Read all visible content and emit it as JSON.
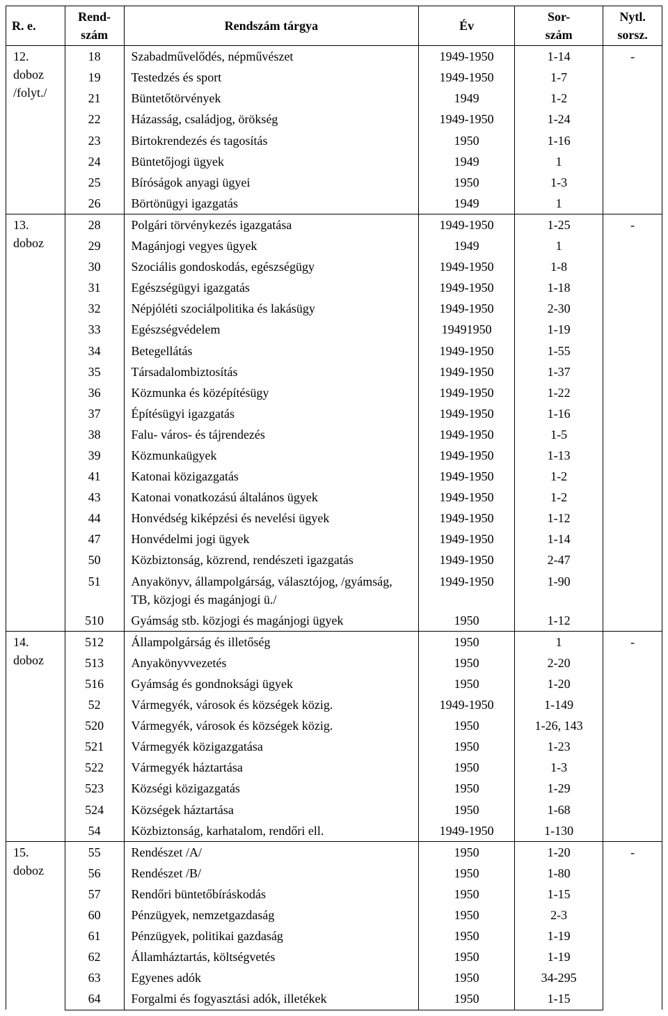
{
  "headers": {
    "re": "R. e.",
    "rend": "Rend-\nszám",
    "targy": "Rendszám tárgya",
    "ev": "Év",
    "sor": "Sor-\nszám",
    "nytl": "Nytl.\nsorsz."
  },
  "groups": [
    {
      "re_lines": [
        "12.",
        "doboz",
        "/folyt./"
      ],
      "nytl": "-",
      "rows": [
        {
          "rend": "18",
          "targy": "Szabadművelődés, népművészet",
          "ev": "1949-1950",
          "sor": "1-14"
        },
        {
          "rend": "19",
          "targy": "Testedzés és sport",
          "ev": "1949-1950",
          "sor": "1-7"
        },
        {
          "rend": "21",
          "targy": "Büntetőtörvények",
          "ev": "1949",
          "sor": "1-2"
        },
        {
          "rend": "22",
          "targy": "Házasság, családjog, örökség",
          "ev": "1949-1950",
          "sor": "1-24"
        },
        {
          "rend": "23",
          "targy": "Birtokrendezés és tagosítás",
          "ev": "1950",
          "sor": "1-16"
        },
        {
          "rend": "24",
          "targy": "Büntetőjogi ügyek",
          "ev": "1949",
          "sor": "1"
        },
        {
          "rend": "25",
          "targy": "Bíróságok anyagi ügyei",
          "ev": "1950",
          "sor": "1-3"
        },
        {
          "rend": "26",
          "targy": "Börtönügyi igazgatás",
          "ev": "1949",
          "sor": "1"
        }
      ]
    },
    {
      "re_lines": [
        "13.",
        "doboz"
      ],
      "nytl": "-",
      "rows": [
        {
          "rend": "28",
          "targy": "Polgári törvénykezés igazgatása",
          "ev": "1949-1950",
          "sor": "1-25"
        },
        {
          "rend": "29",
          "targy": "Magánjogi vegyes ügyek",
          "ev": "1949",
          "sor": "1"
        },
        {
          "rend": "30",
          "targy": "Szociális gondoskodás, egészségügy",
          "ev": "1949-1950",
          "sor": "1-8"
        },
        {
          "rend": "31",
          "targy": "Egészségügyi igazgatás",
          "ev": "1949-1950",
          "sor": "1-18"
        },
        {
          "rend": "32",
          "targy": "Népjóléti szociálpolitika és lakásügy",
          "ev": "1949-1950",
          "sor": "2-30"
        },
        {
          "rend": "33",
          "targy": "Egészségvédelem",
          "ev": "19491950",
          "sor": "1-19"
        },
        {
          "rend": "34",
          "targy": "Betegellátás",
          "ev": "1949-1950",
          "sor": "1-55"
        },
        {
          "rend": "35",
          "targy": "Társadalombiztosítás",
          "ev": "1949-1950",
          "sor": "1-37"
        },
        {
          "rend": "36",
          "targy": "Közmunka és középítésügy",
          "ev": "1949-1950",
          "sor": "1-22"
        },
        {
          "rend": "37",
          "targy": "Építésügyi igazgatás",
          "ev": "1949-1950",
          "sor": "1-16"
        },
        {
          "rend": "38",
          "targy": "Falu- város- és tájrendezés",
          "ev": "1949-1950",
          "sor": "1-5"
        },
        {
          "rend": "39",
          "targy": "Közmunkaügyek",
          "ev": "1949-1950",
          "sor": "1-13"
        },
        {
          "rend": "41",
          "targy": "Katonai közigazgatás",
          "ev": "1949-1950",
          "sor": "1-2"
        },
        {
          "rend": "43",
          "targy": "Katonai vonatkozású általános ügyek",
          "ev": "1949-1950",
          "sor": "1-2"
        },
        {
          "rend": "44",
          "targy": "Honvédség kiképzési és nevelési ügyek",
          "ev": "1949-1950",
          "sor": "1-12"
        },
        {
          "rend": "47",
          "targy": "Honvédelmi jogi ügyek",
          "ev": "1949-1950",
          "sor": "1-14"
        },
        {
          "rend": "50",
          "targy": "Közbiztonság, közrend, rendészeti igazgatás",
          "ev": "1949-1950",
          "sor": "2-47"
        },
        {
          "rend": "51",
          "targy": "Anyakönyv, állampolgárság, választójog, /gyámság, TB, közjogi és magánjogi ü./",
          "ev": "1949-1950",
          "sor": "1-90"
        },
        {
          "rend": "510",
          "targy": "Gyámság stb. közjogi és magánjogi ügyek",
          "ev": "1950",
          "sor": "1-12"
        }
      ]
    },
    {
      "re_lines": [
        "14.",
        "doboz"
      ],
      "nytl": "-",
      "rows": [
        {
          "rend": "512",
          "targy": "Állampolgárság és illetőség",
          "ev": "1950",
          "sor": "1"
        },
        {
          "rend": "513",
          "targy": "Anyakönyvvezetés",
          "ev": "1950",
          "sor": "2-20"
        },
        {
          "rend": "516",
          "targy": "Gyámság és gondnoksági ügyek",
          "ev": "1950",
          "sor": "1-20"
        },
        {
          "rend": "52",
          "targy": "Vármegyék, városok és községek közig.",
          "ev": "1949-1950",
          "sor": "1-149"
        },
        {
          "rend": "520",
          "targy": "Vármegyék, városok és községek közig.",
          "ev": "1950",
          "sor": "1-26, 143"
        },
        {
          "rend": "521",
          "targy": "Vármegyék közigazgatása",
          "ev": "1950",
          "sor": "1-23"
        },
        {
          "rend": "522",
          "targy": "Vármegyék háztartása",
          "ev": "1950",
          "sor": "1-3"
        },
        {
          "rend": "523",
          "targy": "Községi közigazgatás",
          "ev": "1950",
          "sor": "1-29"
        },
        {
          "rend": "524",
          "targy": "Községek háztartása",
          "ev": "1950",
          "sor": "1-68"
        },
        {
          "rend": "54",
          "targy": "Közbiztonság, karhatalom, rendőri ell.",
          "ev": "1949-1950",
          "sor": "1-130"
        }
      ]
    },
    {
      "re_lines": [
        "15.",
        "doboz"
      ],
      "nytl": "-",
      "rows": [
        {
          "rend": "55",
          "targy": "Rendészet /A/",
          "ev": "1950",
          "sor": "1-20"
        },
        {
          "rend": "56",
          "targy": "Rendészet /B/",
          "ev": "1950",
          "sor": "1-80"
        },
        {
          "rend": "57",
          "targy": "Rendőri büntetőbíráskodás",
          "ev": "1950",
          "sor": "1-15"
        },
        {
          "rend": "60",
          "targy": "Pénzügyek, nemzetgazdaság",
          "ev": "1950",
          "sor": "2-3"
        },
        {
          "rend": "61",
          "targy": "Pénzügyek, politikai gazdaság",
          "ev": "1950",
          "sor": "1-19"
        },
        {
          "rend": "62",
          "targy": "Államháztartás, költségvetés",
          "ev": "1950",
          "sor": "1-19"
        },
        {
          "rend": "63",
          "targy": "Egyenes adók",
          "ev": "1950",
          "sor": "34-295"
        },
        {
          "rend": "64",
          "targy": "Forgalmi és fogyasztási adók, illetékek",
          "ev": "1950",
          "sor": "1-15"
        }
      ]
    }
  ]
}
